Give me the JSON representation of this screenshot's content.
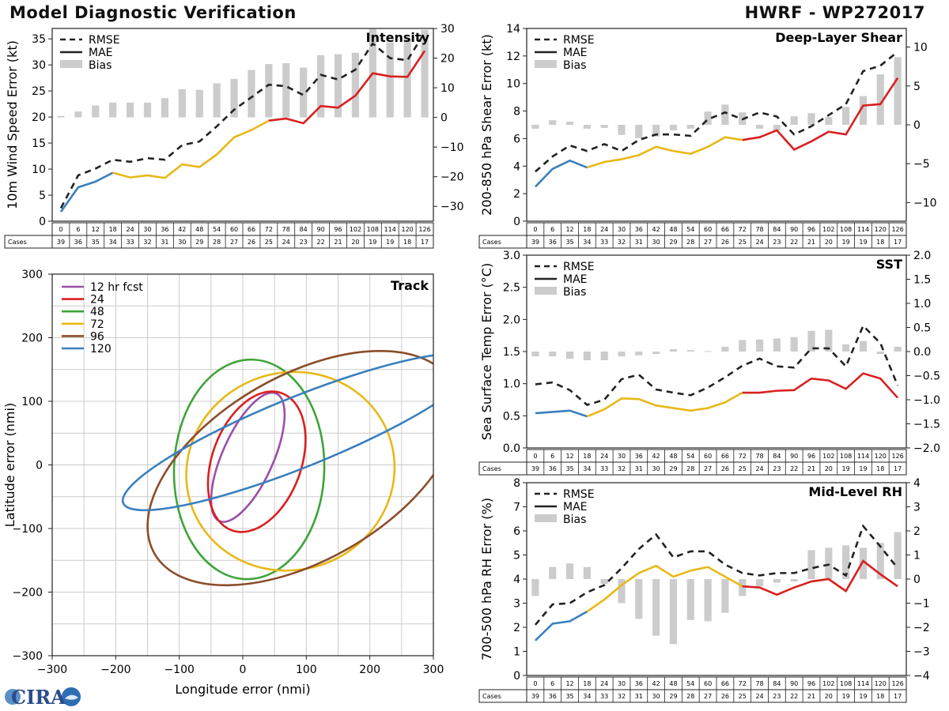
{
  "header": {
    "title": "Model Diagnostic Verification",
    "storm": "HWRF - WP272017"
  },
  "logo": {
    "text": "CIRA"
  },
  "colors": {
    "rmse": "#222222",
    "bias": "#cccccc",
    "grid": "#cccccc",
    "mae_segments": [
      "#3a7fbd",
      "#e8b818",
      "#d92020"
    ]
  },
  "table": {
    "cases_label": "Cases",
    "hours": [
      "0",
      "6",
      "12",
      "18",
      "24",
      "30",
      "36",
      "42",
      "48",
      "54",
      "60",
      "66",
      "72",
      "78",
      "84",
      "90",
      "96",
      "102",
      "108",
      "114",
      "120",
      "126"
    ],
    "cases": [
      "39",
      "36",
      "35",
      "34",
      "33",
      "32",
      "31",
      "30",
      "29",
      "28",
      "27",
      "26",
      "25",
      "24",
      "23",
      "22",
      "21",
      "20",
      "19",
      "19",
      "18",
      "17"
    ]
  },
  "legend_labels": {
    "rmse": "RMSE",
    "mae": "MAE",
    "bias": "Bias"
  },
  "chart_data": [
    {
      "id": "intensity",
      "type": "line",
      "title": "Intensity",
      "ylabel": "10m Wind Speed Error (kt)",
      "ylim": [
        0,
        37
      ],
      "yticks": [
        0,
        5,
        10,
        15,
        20,
        25,
        30,
        35
      ],
      "y2lim": [
        -35,
        30
      ],
      "y2ticks": [
        -30,
        -20,
        -10,
        0,
        10,
        20,
        30
      ],
      "rmse": [
        2.5,
        8.8,
        10.1,
        11.8,
        11.4,
        12.1,
        11.8,
        14.6,
        15.3,
        18.2,
        21.4,
        23.8,
        26.2,
        25.9,
        24.2,
        28.1,
        27.2,
        29.1,
        34.1,
        31.3,
        30.9,
        36.2
      ],
      "mae": [
        1.8,
        6.5,
        7.6,
        9.3,
        8.4,
        8.8,
        8.3,
        10.9,
        10.4,
        12.8,
        16.1,
        17.5,
        19.3,
        19.7,
        18.8,
        22.1,
        21.8,
        24.1,
        28.4,
        27.8,
        27.7,
        32.7
      ],
      "bias": [
        0.5,
        2.0,
        4.0,
        5.0,
        5.0,
        5.0,
        6.5,
        9.5,
        9.3,
        11.5,
        13.0,
        16.0,
        18.0,
        18.3,
        16.8,
        21.0,
        21.3,
        21.8,
        29.8,
        25.3,
        26.5,
        29.5
      ]
    },
    {
      "id": "shear",
      "type": "line",
      "title": "Deep-Layer Shear",
      "ylabel": "200-850 hPa Shear Error (kt)",
      "ylim": [
        0,
        14
      ],
      "yticks": [
        0,
        2,
        4,
        6,
        8,
        10,
        12,
        14
      ],
      "y2lim": [
        -12.4,
        12.4
      ],
      "y2ticks": [
        -10,
        -5,
        0,
        5,
        10
      ],
      "rmse": [
        3.6,
        4.7,
        5.5,
        5.1,
        5.6,
        5.1,
        5.9,
        6.3,
        6.3,
        6.2,
        7.4,
        7.9,
        7.4,
        7.9,
        7.6,
        6.3,
        6.9,
        7.7,
        8.5,
        10.9,
        11.3,
        12.3
      ],
      "mae": [
        2.5,
        3.8,
        4.4,
        3.9,
        4.3,
        4.5,
        4.8,
        5.4,
        5.1,
        4.9,
        5.4,
        6.1,
        5.9,
        6.1,
        6.6,
        5.2,
        5.8,
        6.5,
        6.3,
        8.4,
        8.5,
        10.4
      ],
      "bias": [
        -0.5,
        0.6,
        0.4,
        -0.5,
        -0.4,
        -1.3,
        -1.7,
        -1.5,
        -0.7,
        -0.5,
        1.7,
        2.6,
        1.6,
        -0.5,
        -0.7,
        1.1,
        1.5,
        1.0,
        2.3,
        3.7,
        6.5,
        8.7
      ]
    },
    {
      "id": "sst",
      "type": "line",
      "title": "SST",
      "ylabel": "Sea Surface Temp Error (°C)",
      "ylim": [
        0,
        3.0
      ],
      "yticks": [
        0.0,
        0.5,
        1.0,
        1.5,
        2.0,
        2.5,
        3.0
      ],
      "y2lim": [
        -2.0,
        2.0
      ],
      "y2ticks": [
        -2.0,
        -1.5,
        -1.0,
        -0.5,
        0.0,
        0.5,
        1.0,
        1.5,
        2.0
      ],
      "yfmt": 1,
      "y2fmt": 1,
      "rmse": [
        0.99,
        1.02,
        0.9,
        0.67,
        0.75,
        1.07,
        1.14,
        0.91,
        0.86,
        0.82,
        0.94,
        1.1,
        1.28,
        1.39,
        1.27,
        1.25,
        1.55,
        1.55,
        1.27,
        1.9,
        1.63,
        0.97
      ],
      "mae": [
        0.54,
        0.56,
        0.58,
        0.49,
        0.6,
        0.77,
        0.76,
        0.66,
        0.62,
        0.58,
        0.62,
        0.71,
        0.86,
        0.86,
        0.89,
        0.9,
        1.08,
        1.05,
        0.92,
        1.16,
        1.08,
        0.78
      ],
      "bias": [
        -0.1,
        -0.1,
        -0.15,
        -0.18,
        -0.18,
        -0.1,
        -0.08,
        -0.05,
        0.05,
        0.03,
        0.01,
        0.1,
        0.24,
        0.25,
        0.27,
        0.3,
        0.43,
        0.45,
        0.15,
        0.22,
        -0.05,
        0.1
      ]
    },
    {
      "id": "rh",
      "type": "line",
      "title": "Mid-Level RH",
      "ylabel": "700-500 hPa RH Error (%)",
      "ylim": [
        0,
        8
      ],
      "yticks": [
        0,
        1,
        2,
        3,
        4,
        5,
        6,
        7,
        8
      ],
      "y2lim": [
        -4,
        4
      ],
      "y2ticks": [
        -4,
        -3,
        -2,
        -1,
        0,
        1,
        2,
        3,
        4
      ],
      "rmse": [
        2.1,
        2.95,
        3.0,
        3.45,
        3.75,
        4.45,
        5.25,
        5.85,
        4.9,
        5.15,
        5.15,
        4.6,
        4.25,
        4.15,
        4.25,
        4.25,
        4.45,
        4.6,
        4.15,
        6.2,
        5.35,
        4.45
      ],
      "mae": [
        1.45,
        2.15,
        2.25,
        2.65,
        3.15,
        3.75,
        4.25,
        4.55,
        4.1,
        4.35,
        4.5,
        4.1,
        3.7,
        3.65,
        3.35,
        3.65,
        3.9,
        4.0,
        3.5,
        4.75,
        4.2,
        3.7
      ],
      "bias": [
        -0.7,
        0.5,
        0.65,
        0.5,
        -0.2,
        -1.0,
        -1.65,
        -2.35,
        -2.7,
        -1.7,
        -1.75,
        -1.4,
        -0.7,
        -0.3,
        -0.15,
        -0.1,
        1.2,
        1.3,
        1.4,
        1.3,
        1.5,
        1.95
      ]
    },
    {
      "id": "track",
      "type": "ellipse",
      "title": "Track",
      "xlabel": "Longitude error (nmi)",
      "ylabel": "Latitude error (nmi)",
      "xlim": [
        -300,
        300
      ],
      "ylim": [
        -300,
        300
      ],
      "xticks": [
        -300,
        -200,
        -100,
        0,
        100,
        200,
        300
      ],
      "yticks": [
        -300,
        -200,
        -100,
        0,
        100,
        200,
        300
      ],
      "series": [
        {
          "name": "12 hr fcst",
          "color": "#9a4fa8",
          "cx": 8,
          "cy": 12,
          "rx": 110,
          "ry": 40,
          "angle": 66
        },
        {
          "name": "24",
          "color": "#d92020",
          "cx": 22,
          "cy": 5,
          "rx": 115,
          "ry": 70,
          "angle": 70
        },
        {
          "name": "48",
          "color": "#3ea43a",
          "cx": 10,
          "cy": -7,
          "rx": 173,
          "ry": 118,
          "angle": 88
        },
        {
          "name": "72",
          "color": "#e8b818",
          "cx": 75,
          "cy": -10,
          "rx": 165,
          "ry": 155,
          "angle": 20
        },
        {
          "name": "96",
          "color": "#8b4d2a",
          "cx": 95,
          "cy": -5,
          "rx": 270,
          "ry": 145,
          "angle": 30
        },
        {
          "name": "120",
          "color": "#3a7fbd",
          "cx": 90,
          "cy": 52,
          "rx": 300,
          "ry": 55,
          "angle": 22
        }
      ]
    }
  ]
}
